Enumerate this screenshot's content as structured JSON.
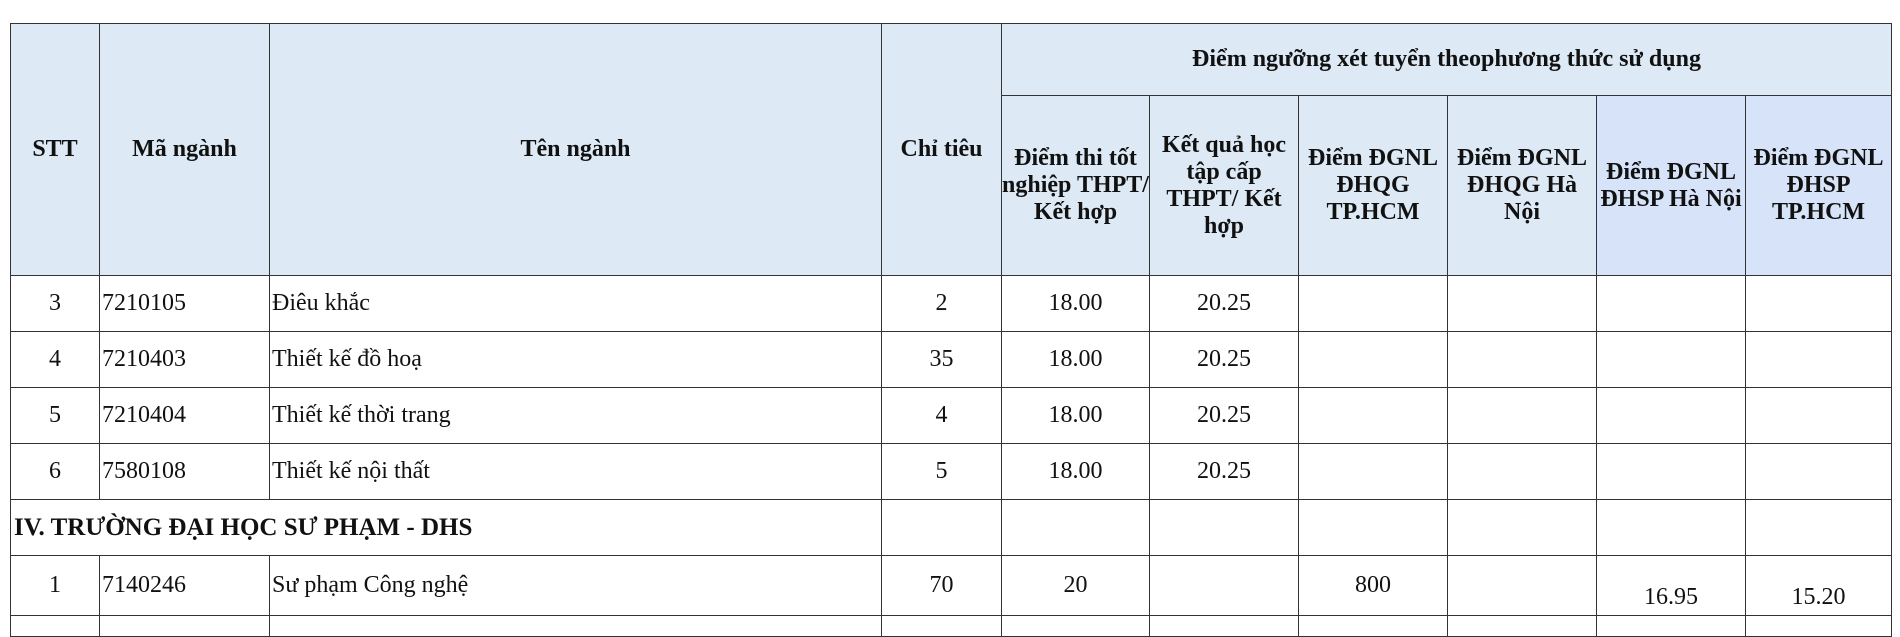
{
  "headers": {
    "stt": "STT",
    "ma_nganh": "Mã ngành",
    "ten_nganh": "Tên ngành",
    "chi_tieu": "Chỉ tiêu",
    "group": "Điểm ngưỡng xét tuyển theophương thức sử dụng",
    "sub": [
      "Điểm thi tốt nghiệp THPT/ Kết hợp",
      "Kết quả học tập cấp THPT/ Kết hợp",
      "Điểm ĐGNL ĐHQG TP.HCM",
      "Điểm ĐGNL ĐHQG Hà Nội",
      "Điểm ĐGNL ĐHSP Hà Nội",
      "Điểm ĐGNL ĐHSP TP.HCM"
    ]
  },
  "rows": [
    {
      "stt": "3",
      "ma": "7210105",
      "ten": "Điêu khắc",
      "chi_tieu": "2",
      "scores": [
        "18.00",
        "20.25",
        "",
        "",
        "",
        ""
      ]
    },
    {
      "stt": "4",
      "ma": "7210403",
      "ten": "Thiết kế đồ hoạ",
      "chi_tieu": "35",
      "scores": [
        "18.00",
        "20.25",
        "",
        "",
        "",
        ""
      ]
    },
    {
      "stt": "5",
      "ma": "7210404",
      "ten": "Thiết kế thời trang",
      "chi_tieu": "4",
      "scores": [
        "18.00",
        "20.25",
        "",
        "",
        "",
        ""
      ]
    },
    {
      "stt": "6",
      "ma": "7580108",
      "ten": "Thiết kế nội thất",
      "chi_tieu": "5",
      "scores": [
        "18.00",
        "20.25",
        "",
        "",
        "",
        ""
      ]
    }
  ],
  "section": "IV. TRƯỜNG ĐẠI HỌC SƯ PHẠM - DHS",
  "section_rows": [
    {
      "stt": "1",
      "ma": "7140246",
      "ten": "Sư phạm Công nghệ",
      "chi_tieu": "70",
      "scores": [
        "20",
        "",
        "800",
        "",
        "16.95",
        "15.20"
      ]
    }
  ],
  "colors": {
    "header_bg": "#dde9f5",
    "border": "#333333"
  }
}
